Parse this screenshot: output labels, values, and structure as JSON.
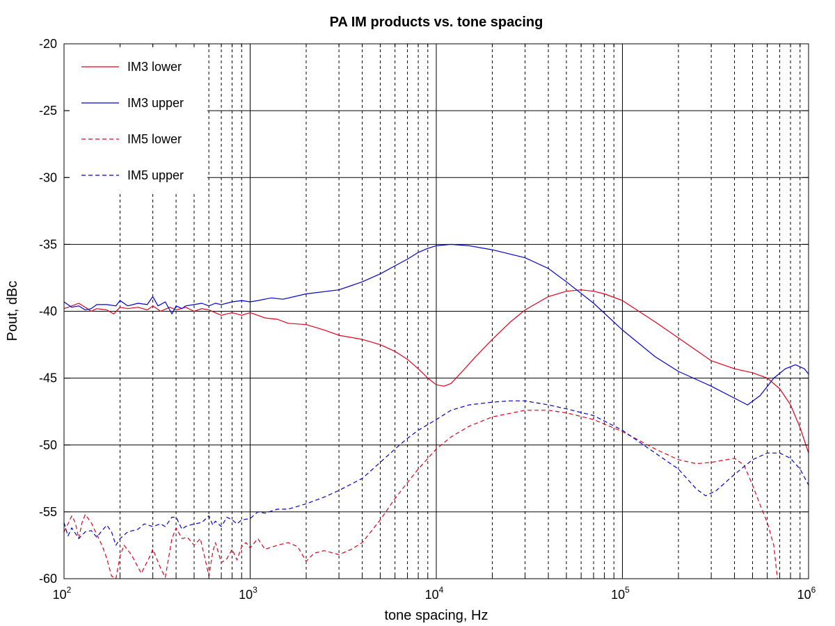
{
  "chart_data": {
    "type": "line",
    "title": "PA IM products vs. tone spacing",
    "xlabel": "tone spacing, Hz",
    "ylabel": "Pout, dBc",
    "xscale": "log",
    "xlim": [
      100,
      1000000
    ],
    "ylim": [
      -60,
      -20
    ],
    "grid": true,
    "legend_position": "top-left",
    "x_tick_labels": [
      {
        "base": "10",
        "exp": "2"
      },
      {
        "base": "10",
        "exp": "3"
      },
      {
        "base": "10",
        "exp": "4"
      },
      {
        "base": "10",
        "exp": "5"
      },
      {
        "base": "10",
        "exp": "6"
      }
    ],
    "y_ticks": [
      -60,
      -55,
      -50,
      -45,
      -40,
      -35,
      -30,
      -25,
      -20
    ],
    "series": [
      {
        "name": "IM3 lower",
        "color": "#e0001a",
        "dash": "solid",
        "points": [
          [
            100,
            -39.8
          ],
          [
            110,
            -39.6
          ],
          [
            120,
            -39.4
          ],
          [
            130,
            -39.7
          ],
          [
            140,
            -40.0
          ],
          [
            150,
            -39.8
          ],
          [
            170,
            -39.9
          ],
          [
            185,
            -40.2
          ],
          [
            200,
            -39.7
          ],
          [
            220,
            -39.8
          ],
          [
            250,
            -39.7
          ],
          [
            280,
            -39.9
          ],
          [
            300,
            -39.6
          ],
          [
            330,
            -40.0
          ],
          [
            370,
            -39.7
          ],
          [
            400,
            -39.9
          ],
          [
            450,
            -39.7
          ],
          [
            500,
            -40.0
          ],
          [
            550,
            -39.8
          ],
          [
            600,
            -39.9
          ],
          [
            700,
            -40.3
          ],
          [
            800,
            -40.1
          ],
          [
            900,
            -40.3
          ],
          [
            1000,
            -40.1
          ],
          [
            1200,
            -40.5
          ],
          [
            1400,
            -40.6
          ],
          [
            1600,
            -40.9
          ],
          [
            2000,
            -41.0
          ],
          [
            2500,
            -41.4
          ],
          [
            3000,
            -41.8
          ],
          [
            4000,
            -42.1
          ],
          [
            5000,
            -42.5
          ],
          [
            6000,
            -43.0
          ],
          [
            7000,
            -43.6
          ],
          [
            8000,
            -44.3
          ],
          [
            9000,
            -45.0
          ],
          [
            10000,
            -45.5
          ],
          [
            11000,
            -45.6
          ],
          [
            12000,
            -45.4
          ],
          [
            14000,
            -44.4
          ],
          [
            16000,
            -43.5
          ],
          [
            20000,
            -42.1
          ],
          [
            25000,
            -40.8
          ],
          [
            30000,
            -39.9
          ],
          [
            40000,
            -38.9
          ],
          [
            50000,
            -38.5
          ],
          [
            60000,
            -38.4
          ],
          [
            70000,
            -38.5
          ],
          [
            80000,
            -38.7
          ],
          [
            100000,
            -39.2
          ],
          [
            150000,
            -40.8
          ],
          [
            200000,
            -42.0
          ],
          [
            300000,
            -43.7
          ],
          [
            400000,
            -44.3
          ],
          [
            500000,
            -44.6
          ],
          [
            600000,
            -45.0
          ],
          [
            700000,
            -45.8
          ],
          [
            800000,
            -47.0
          ],
          [
            900000,
            -48.7
          ],
          [
            1000000,
            -50.6
          ]
        ]
      },
      {
        "name": "IM3 upper",
        "color": "#0000cc",
        "dash": "solid",
        "points": [
          [
            100,
            -39.3
          ],
          [
            110,
            -39.7
          ],
          [
            120,
            -39.6
          ],
          [
            130,
            -39.9
          ],
          [
            140,
            -39.8
          ],
          [
            150,
            -39.5
          ],
          [
            170,
            -39.5
          ],
          [
            190,
            -39.6
          ],
          [
            200,
            -39.2
          ],
          [
            220,
            -39.6
          ],
          [
            250,
            -39.4
          ],
          [
            280,
            -39.5
          ],
          [
            300,
            -38.9
          ],
          [
            320,
            -39.6
          ],
          [
            350,
            -39.3
          ],
          [
            380,
            -40.2
          ],
          [
            400,
            -39.6
          ],
          [
            430,
            -39.8
          ],
          [
            450,
            -39.6
          ],
          [
            500,
            -39.5
          ],
          [
            550,
            -39.4
          ],
          [
            600,
            -39.6
          ],
          [
            650,
            -39.4
          ],
          [
            700,
            -39.5
          ],
          [
            800,
            -39.3
          ],
          [
            900,
            -39.2
          ],
          [
            1000,
            -39.3
          ],
          [
            1100,
            -39.2
          ],
          [
            1300,
            -39.0
          ],
          [
            1500,
            -39.1
          ],
          [
            2000,
            -38.7
          ],
          [
            3000,
            -38.4
          ],
          [
            4000,
            -37.8
          ],
          [
            5000,
            -37.2
          ],
          [
            6000,
            -36.6
          ],
          [
            7000,
            -36.1
          ],
          [
            8000,
            -35.6
          ],
          [
            9000,
            -35.3
          ],
          [
            10000,
            -35.1
          ],
          [
            12000,
            -35.0
          ],
          [
            15000,
            -35.1
          ],
          [
            20000,
            -35.4
          ],
          [
            30000,
            -36.0
          ],
          [
            40000,
            -36.8
          ],
          [
            50000,
            -37.8
          ],
          [
            70000,
            -39.4
          ],
          [
            100000,
            -41.4
          ],
          [
            150000,
            -43.4
          ],
          [
            200000,
            -44.5
          ],
          [
            300000,
            -45.6
          ],
          [
            400000,
            -46.5
          ],
          [
            470000,
            -47.0
          ],
          [
            550000,
            -46.3
          ],
          [
            650000,
            -45.0
          ],
          [
            750000,
            -44.3
          ],
          [
            850000,
            -44.0
          ],
          [
            950000,
            -44.3
          ],
          [
            1000000,
            -44.7
          ]
        ]
      },
      {
        "name": "IM5 lower",
        "color": "#e0001a",
        "dash": "dashed",
        "points": [
          [
            100,
            -56.5
          ],
          [
            105,
            -55.9
          ],
          [
            110,
            -55.3
          ],
          [
            115,
            -55.8
          ],
          [
            120,
            -57.0
          ],
          [
            125,
            -55.8
          ],
          [
            130,
            -55.2
          ],
          [
            140,
            -55.8
          ],
          [
            150,
            -56.7
          ],
          [
            160,
            -57.5
          ],
          [
            170,
            -58.5
          ],
          [
            180,
            -59.8
          ],
          [
            190,
            -60.0
          ],
          [
            200,
            -58.3
          ],
          [
            210,
            -57.5
          ],
          [
            230,
            -58.2
          ],
          [
            260,
            -59.6
          ],
          [
            290,
            -58.3
          ],
          [
            300,
            -57.8
          ],
          [
            330,
            -59.2
          ],
          [
            350,
            -59.9
          ],
          [
            380,
            -57.0
          ],
          [
            400,
            -56.2
          ],
          [
            430,
            -57.0
          ],
          [
            460,
            -56.9
          ],
          [
            500,
            -57.5
          ],
          [
            540,
            -57.0
          ],
          [
            570,
            -58.4
          ],
          [
            600,
            -59.8
          ],
          [
            630,
            -58.0
          ],
          [
            650,
            -57.3
          ],
          [
            700,
            -58.8
          ],
          [
            750,
            -58.5
          ],
          [
            800,
            -57.8
          ],
          [
            850,
            -58.6
          ],
          [
            900,
            -57.6
          ],
          [
            950,
            -57.3
          ],
          [
            1000,
            -57.7
          ],
          [
            1100,
            -57.0
          ],
          [
            1200,
            -57.8
          ],
          [
            1400,
            -57.5
          ],
          [
            1600,
            -57.3
          ],
          [
            1800,
            -57.6
          ],
          [
            2000,
            -58.7
          ],
          [
            2200,
            -58.1
          ],
          [
            2500,
            -57.9
          ],
          [
            3000,
            -58.2
          ],
          [
            3500,
            -57.8
          ],
          [
            4000,
            -57.3
          ],
          [
            5000,
            -55.6
          ],
          [
            6000,
            -54.0
          ],
          [
            7000,
            -52.8
          ],
          [
            8000,
            -51.8
          ],
          [
            10000,
            -50.3
          ],
          [
            12000,
            -49.4
          ],
          [
            15000,
            -48.6
          ],
          [
            20000,
            -47.9
          ],
          [
            30000,
            -47.4
          ],
          [
            40000,
            -47.4
          ],
          [
            50000,
            -47.6
          ],
          [
            70000,
            -48.1
          ],
          [
            100000,
            -49.0
          ],
          [
            150000,
            -50.3
          ],
          [
            200000,
            -51.1
          ],
          [
            250000,
            -51.4
          ],
          [
            300000,
            -51.3
          ],
          [
            400000,
            -51.0
          ],
          [
            450000,
            -51.5
          ],
          [
            500000,
            -53.0
          ],
          [
            550000,
            -54.5
          ],
          [
            600000,
            -55.8
          ],
          [
            650000,
            -57.5
          ],
          [
            680000,
            -60.0
          ]
        ]
      },
      {
        "name": "IM5 upper",
        "color": "#0000cc",
        "dash": "dashed",
        "points": [
          [
            100,
            -55.8
          ],
          [
            105,
            -56.8
          ],
          [
            110,
            -56.2
          ],
          [
            120,
            -57.0
          ],
          [
            130,
            -56.5
          ],
          [
            140,
            -56.4
          ],
          [
            150,
            -56.9
          ],
          [
            160,
            -56.4
          ],
          [
            170,
            -56.0
          ],
          [
            180,
            -56.5
          ],
          [
            190,
            -57.5
          ],
          [
            200,
            -57.0
          ],
          [
            220,
            -56.5
          ],
          [
            250,
            -56.3
          ],
          [
            270,
            -55.9
          ],
          [
            300,
            -56.1
          ],
          [
            330,
            -55.9
          ],
          [
            350,
            -56.1
          ],
          [
            380,
            -55.4
          ],
          [
            400,
            -55.4
          ],
          [
            430,
            -56.3
          ],
          [
            450,
            -56.1
          ],
          [
            500,
            -55.9
          ],
          [
            550,
            -55.8
          ],
          [
            600,
            -55.3
          ],
          [
            630,
            -56.0
          ],
          [
            650,
            -55.7
          ],
          [
            700,
            -56.1
          ],
          [
            750,
            -55.4
          ],
          [
            800,
            -55.6
          ],
          [
            850,
            -55.9
          ],
          [
            900,
            -55.6
          ],
          [
            1000,
            -55.5
          ],
          [
            1100,
            -55.0
          ],
          [
            1200,
            -55.1
          ],
          [
            1400,
            -54.8
          ],
          [
            1600,
            -54.8
          ],
          [
            2000,
            -54.4
          ],
          [
            2500,
            -53.9
          ],
          [
            3000,
            -53.4
          ],
          [
            4000,
            -52.5
          ],
          [
            5000,
            -51.3
          ],
          [
            6000,
            -50.3
          ],
          [
            7000,
            -49.5
          ],
          [
            8000,
            -48.9
          ],
          [
            10000,
            -48.1
          ],
          [
            12000,
            -47.4
          ],
          [
            15000,
            -47.0
          ],
          [
            20000,
            -46.8
          ],
          [
            25000,
            -46.7
          ],
          [
            30000,
            -46.7
          ],
          [
            40000,
            -47.0
          ],
          [
            50000,
            -47.3
          ],
          [
            70000,
            -47.8
          ],
          [
            100000,
            -48.9
          ],
          [
            150000,
            -50.6
          ],
          [
            200000,
            -51.8
          ],
          [
            250000,
            -53.3
          ],
          [
            280000,
            -53.8
          ],
          [
            320000,
            -53.4
          ],
          [
            400000,
            -52.2
          ],
          [
            500000,
            -51.1
          ],
          [
            600000,
            -50.6
          ],
          [
            700000,
            -50.6
          ],
          [
            800000,
            -51.0
          ],
          [
            900000,
            -51.8
          ],
          [
            1000000,
            -53.0
          ]
        ]
      }
    ]
  }
}
